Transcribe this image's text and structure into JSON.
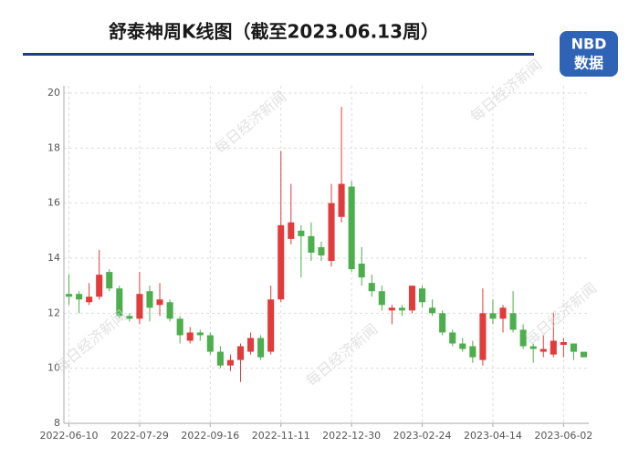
{
  "logo": {
    "brand": "NBD",
    "caption": "数据"
  },
  "watermark": "每日经济新闻",
  "chart_data": {
    "type": "candlestick",
    "title": "舒泰神周K线图（截至2023.06.13周）",
    "categories": [
      "2022-06-10",
      null,
      null,
      null,
      null,
      null,
      null,
      "2022-07-29",
      null,
      null,
      null,
      null,
      null,
      null,
      "2022-09-16",
      null,
      null,
      null,
      null,
      null,
      null,
      "2022-11-11",
      null,
      null,
      null,
      null,
      null,
      null,
      "2022-12-30",
      null,
      null,
      null,
      null,
      null,
      null,
      "2023-02-24",
      null,
      null,
      null,
      null,
      null,
      null,
      "2023-04-14",
      null,
      null,
      null,
      null,
      null,
      null,
      "2023-06-02",
      null,
      null
    ],
    "open": [
      12.7,
      12.7,
      12.4,
      12.6,
      13.5,
      12.9,
      11.9,
      11.8,
      12.8,
      12.3,
      12.4,
      11.8,
      11.0,
      11.3,
      11.2,
      10.6,
      10.1,
      10.3,
      10.6,
      11.1,
      10.6,
      12.5,
      14.7,
      15.0,
      14.8,
      14.4,
      13.9,
      15.5,
      16.6,
      13.8,
      13.1,
      12.8,
      12.1,
      12.2,
      12.1,
      12.9,
      12.2,
      12.0,
      11.3,
      10.9,
      10.8,
      10.3,
      12.0,
      11.8,
      12.0,
      11.4,
      10.8,
      10.6,
      10.5,
      10.85,
      10.9,
      10.6
    ],
    "close": [
      12.6,
      12.5,
      12.6,
      13.4,
      12.9,
      11.9,
      11.8,
      12.7,
      12.2,
      12.5,
      11.8,
      11.2,
      11.3,
      11.2,
      10.6,
      10.1,
      10.3,
      10.8,
      11.1,
      10.4,
      12.5,
      15.2,
      15.3,
      14.8,
      14.2,
      14.1,
      16.0,
      16.7,
      13.6,
      13.3,
      12.8,
      12.3,
      12.2,
      12.1,
      13.0,
      12.4,
      12.0,
      11.3,
      10.9,
      10.7,
      10.4,
      12.0,
      11.8,
      12.2,
      11.4,
      10.8,
      10.7,
      10.7,
      11.0,
      10.95,
      10.6,
      10.4
    ],
    "low": [
      12.3,
      12.0,
      12.3,
      12.5,
      12.8,
      11.8,
      11.7,
      11.6,
      11.7,
      11.9,
      11.7,
      10.9,
      10.9,
      11.0,
      10.5,
      10.0,
      9.9,
      9.5,
      10.5,
      10.3,
      10.5,
      12.4,
      14.5,
      13.3,
      13.9,
      13.9,
      13.7,
      15.3,
      13.5,
      13.0,
      12.6,
      12.1,
      11.6,
      11.9,
      12.0,
      12.2,
      11.9,
      11.2,
      10.8,
      10.6,
      10.2,
      10.1,
      11.6,
      11.3,
      11.3,
      10.7,
      10.2,
      10.4,
      10.4,
      10.4,
      10.3,
      10.4
    ],
    "high": [
      13.4,
      12.8,
      13.1,
      14.3,
      13.6,
      13.0,
      12.0,
      13.5,
      13.0,
      13.1,
      12.5,
      11.9,
      11.5,
      11.4,
      11.3,
      10.8,
      10.5,
      10.9,
      11.3,
      11.2,
      13.0,
      17.9,
      16.7,
      15.2,
      15.3,
      14.6,
      16.7,
      19.5,
      16.8,
      14.4,
      13.4,
      13.0,
      12.3,
      12.3,
      13.0,
      13.0,
      12.5,
      12.1,
      11.4,
      11.1,
      11.0,
      12.9,
      12.5,
      12.3,
      12.8,
      11.6,
      10.9,
      11.2,
      12.0,
      11.1,
      10.9,
      10.6
    ],
    "up_color": "#e23b3b",
    "down_color": "#4cae4c",
    "ylim": [
      8,
      20
    ],
    "yticks": [
      8,
      10,
      12,
      14,
      16,
      18,
      20
    ],
    "grid": true
  }
}
